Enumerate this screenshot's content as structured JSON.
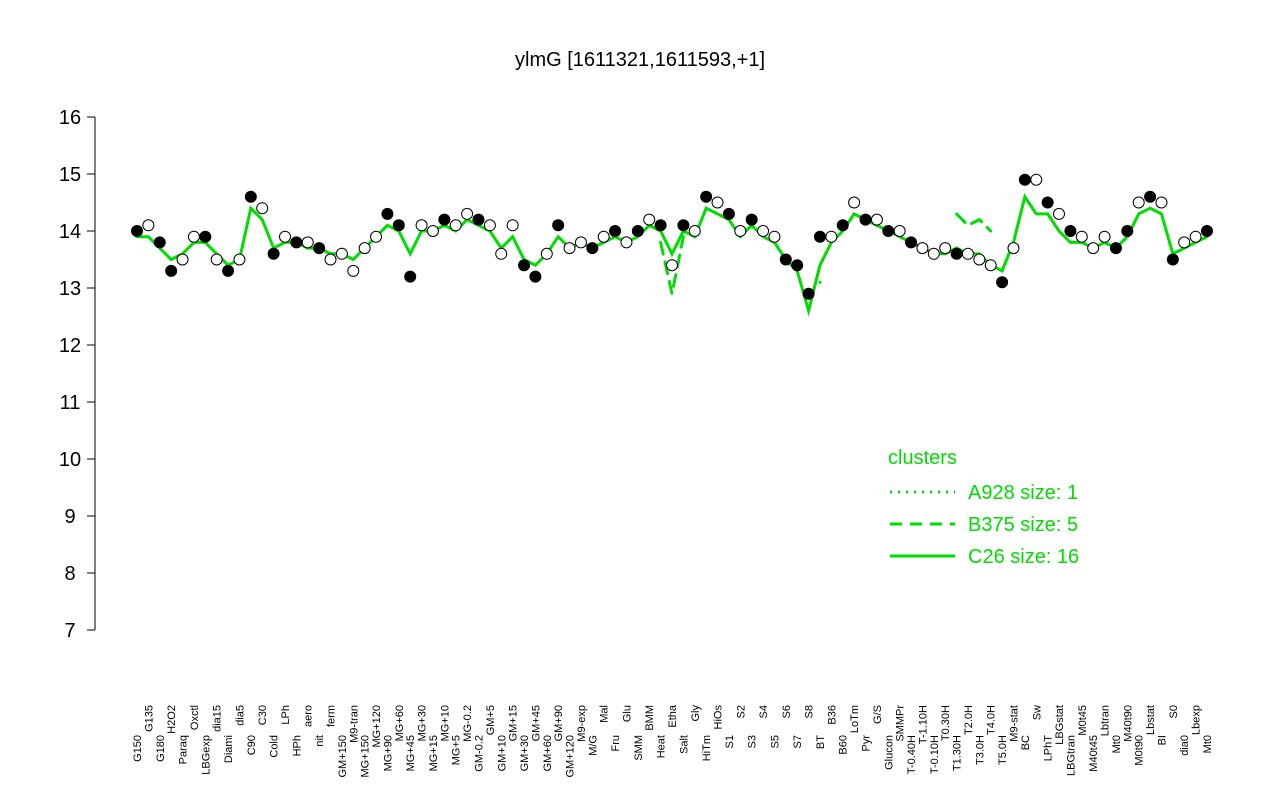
{
  "chart_data": {
    "type": "line",
    "title": "ylmG [1611321,1611593,+1]",
    "categories": [
      "G150",
      "G135",
      "G180",
      "H2O2",
      "Paraq",
      "Oxctl",
      "LBGexp",
      "dia15",
      "Diami",
      "dia5",
      "C90",
      "C30",
      "Cold",
      "LPh",
      "HPh",
      "aero",
      "nit",
      "ferm",
      "GM+150",
      "M9-tran",
      "MG+150",
      "MG+120",
      "MG+90",
      "MG+60",
      "MG+45",
      "MG+30",
      "MG+15",
      "MG+10",
      "MG+5",
      "MG-0.2",
      "GM-0.2",
      "GM+5",
      "GM+10",
      "GM+15",
      "GM+30",
      "GM+45",
      "GM+60",
      "GM+90",
      "GM+120",
      "M9-exp",
      "M/G",
      "Mal",
      "Fru",
      "Glu",
      "SMM",
      "BMM",
      "Heat",
      "Etha",
      "Salt",
      "Gly",
      "HiTm",
      "HiOs",
      "S1",
      "S2",
      "S3",
      "S4",
      "S5",
      "S6",
      "S7",
      "S8",
      "BT",
      "B36",
      "B60",
      "LoTm",
      "Pyr",
      "G/S",
      "Glucon",
      "SMMPr",
      "T-0.40H",
      "T-1.10H",
      "T-0.10H",
      "T0.30H",
      "T1.30H",
      "T2.0H",
      "T3.0H",
      "T4.0H",
      "T5.0H",
      "M9-stat",
      "BC",
      "Sw",
      "LPhT",
      "LBGstat",
      "LBGtran",
      "M0t45",
      "M40t45",
      "Lbtran",
      "Mt0",
      "M40t90",
      "M0t90",
      "Lbstat",
      "BI",
      "S0",
      "dia0",
      "Lbexp",
      "Mt0"
    ],
    "values": [
      14.0,
      14.1,
      13.8,
      13.3,
      13.5,
      13.9,
      13.9,
      13.5,
      13.3,
      13.5,
      14.6,
      14.4,
      13.6,
      13.9,
      13.8,
      13.8,
      13.7,
      13.5,
      13.6,
      13.3,
      13.7,
      13.9,
      14.3,
      14.1,
      13.2,
      14.1,
      14.0,
      14.2,
      14.1,
      14.3,
      14.2,
      14.1,
      13.6,
      14.1,
      13.4,
      13.2,
      13.6,
      14.1,
      13.7,
      13.8,
      13.7,
      13.9,
      14.0,
      13.8,
      14.0,
      14.2,
      14.1,
      13.4,
      14.1,
      14.0,
      14.6,
      14.5,
      14.3,
      14.0,
      14.2,
      14.0,
      13.9,
      13.5,
      13.4,
      12.9,
      13.9,
      13.9,
      14.1,
      14.5,
      14.2,
      14.2,
      14.0,
      14.0,
      13.8,
      13.7,
      13.6,
      13.7,
      13.6,
      13.6,
      13.5,
      13.4,
      13.1,
      13.7,
      14.9,
      14.9,
      14.5,
      14.3,
      14.0,
      13.9,
      13.7,
      13.9,
      13.7,
      14.0,
      14.5,
      14.6,
      14.5,
      13.5,
      13.8,
      13.9,
      14.0
    ],
    "point_fill": [
      "black",
      "white",
      "black",
      "black",
      "white",
      "white",
      "black",
      "white",
      "black",
      "white",
      "black",
      "white",
      "black",
      "white",
      "black",
      "white",
      "black",
      "white",
      "white",
      "white",
      "white",
      "white",
      "black",
      "black",
      "black",
      "white",
      "white",
      "black",
      "white",
      "white",
      "black",
      "white",
      "white",
      "white",
      "black",
      "black",
      "white",
      "black",
      "white",
      "white",
      "black",
      "white",
      "black",
      "white",
      "black",
      "white",
      "black",
      "white",
      "black",
      "white",
      "black",
      "white",
      "black",
      "white",
      "black",
      "white",
      "white",
      "black",
      "black",
      "black",
      "black",
      "white",
      "black",
      "white",
      "black",
      "white",
      "black",
      "white",
      "black",
      "white",
      "white",
      "white",
      "black",
      "white",
      "white",
      "white",
      "black",
      "white",
      "black",
      "white",
      "black",
      "white",
      "black",
      "white",
      "white",
      "white",
      "black",
      "black",
      "white",
      "black",
      "white",
      "black",
      "white",
      "white",
      "black"
    ],
    "series": [
      {
        "name": "A928 size: 1",
        "color": "#00dd00",
        "style": "dotted",
        "values": [
          null,
          null,
          null,
          null,
          null,
          null,
          null,
          null,
          null,
          null,
          null,
          null,
          null,
          null,
          null,
          null,
          null,
          null,
          null,
          null,
          null,
          null,
          null,
          null,
          null,
          null,
          null,
          null,
          null,
          null,
          null,
          null,
          null,
          null,
          null,
          null,
          null,
          null,
          null,
          null,
          null,
          null,
          null,
          null,
          null,
          null,
          null,
          null,
          null,
          null,
          null,
          null,
          null,
          null,
          null,
          null,
          null,
          null,
          null,
          null,
          13.1,
          null,
          null,
          null,
          null,
          null,
          null,
          null,
          null,
          null,
          null,
          null,
          null,
          null,
          null,
          null,
          null,
          null,
          null,
          null,
          null,
          null,
          null,
          null,
          null,
          null,
          null,
          null,
          null,
          null,
          null,
          null,
          null,
          null,
          null
        ]
      },
      {
        "name": "B375 size: 5",
        "color": "#00dd00",
        "style": "dashed",
        "values": [
          null,
          null,
          null,
          null,
          null,
          null,
          null,
          null,
          null,
          null,
          null,
          null,
          null,
          null,
          null,
          null,
          null,
          null,
          null,
          null,
          null,
          null,
          null,
          null,
          null,
          null,
          null,
          null,
          null,
          null,
          null,
          null,
          null,
          null,
          null,
          null,
          null,
          null,
          null,
          null,
          null,
          null,
          null,
          null,
          null,
          null,
          13.8,
          12.9,
          13.9,
          null,
          null,
          null,
          null,
          null,
          null,
          null,
          null,
          null,
          null,
          null,
          null,
          null,
          null,
          null,
          null,
          null,
          null,
          null,
          null,
          null,
          null,
          null,
          14.3,
          14.1,
          14.2,
          14.0,
          null,
          null,
          null,
          null,
          null,
          null,
          null,
          null,
          null,
          null,
          null,
          null,
          null,
          null,
          null,
          null,
          null,
          null,
          null
        ]
      },
      {
        "name": "C26 size: 16",
        "color": "#00dd00",
        "style": "solid",
        "values": [
          13.9,
          13.9,
          13.7,
          13.5,
          13.6,
          13.8,
          13.8,
          13.6,
          13.4,
          13.5,
          14.4,
          14.2,
          13.7,
          13.8,
          13.8,
          13.7,
          13.7,
          13.6,
          13.6,
          13.5,
          13.7,
          13.9,
          14.1,
          14.0,
          13.6,
          14.0,
          14.0,
          14.1,
          14.0,
          14.2,
          14.1,
          14.0,
          13.7,
          13.9,
          13.5,
          13.4,
          13.6,
          13.9,
          13.7,
          13.8,
          13.7,
          13.8,
          13.9,
          13.8,
          13.9,
          14.1,
          14.0,
          13.6,
          14.0,
          13.9,
          14.4,
          14.3,
          14.2,
          13.9,
          14.1,
          13.9,
          13.8,
          13.5,
          13.3,
          12.6,
          13.4,
          13.8,
          14.0,
          14.3,
          14.2,
          14.1,
          14.0,
          13.9,
          13.8,
          13.7,
          13.6,
          13.6,
          13.7,
          13.6,
          13.6,
          13.4,
          13.3,
          13.8,
          14.6,
          14.3,
          14.3,
          14.0,
          13.8,
          13.8,
          13.7,
          13.8,
          13.7,
          13.9,
          14.3,
          14.4,
          14.3,
          13.6,
          13.7,
          13.8,
          13.9
        ]
      }
    ],
    "ylim": [
      7,
      16
    ],
    "yticks": [
      7,
      8,
      9,
      10,
      11,
      12,
      13,
      14,
      15,
      16
    ],
    "legend_title": "clusters",
    "legend": "bottom-right"
  }
}
